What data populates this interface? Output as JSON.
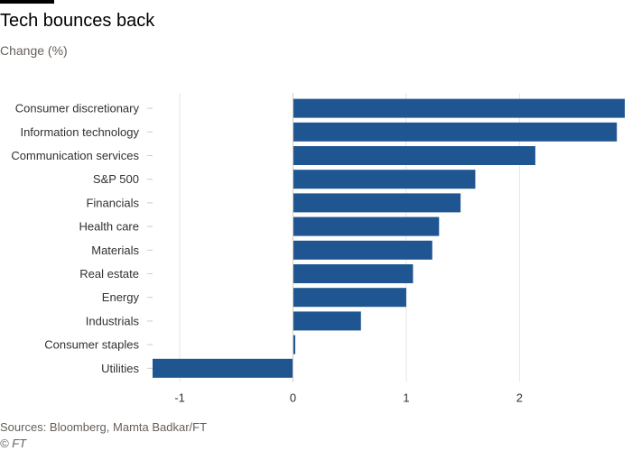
{
  "header": {
    "title": "Tech bounces back",
    "subtitle": "Change (%)"
  },
  "footer": {
    "source": "Sources: Bloomberg, Mamta Badkar/FT",
    "credit": "© FT"
  },
  "colors": {
    "bar": "#1f5591",
    "grid": "#e6e6e6",
    "zero_line": "#cccccc",
    "text": "#33302e",
    "muted_text": "#66605c"
  },
  "chart_data": {
    "type": "bar",
    "orientation": "horizontal",
    "title": "Tech bounces back",
    "subtitle": "Change (%)",
    "xlabel": "",
    "ylabel": "",
    "xlim": [
      -1.24,
      2.93
    ],
    "x_ticks": [
      -1,
      0,
      1,
      2
    ],
    "x_tick_labels": [
      "-1",
      "0",
      "1",
      "2"
    ],
    "grid": true,
    "categories": [
      "Consumer discretionary",
      "Information technology",
      "Communication services",
      "S&P 500",
      "Financials",
      "Health care",
      "Materials",
      "Real estate",
      "Energy",
      "Industrials",
      "Consumer staples",
      "Utilities"
    ],
    "values": [
      2.93,
      2.86,
      2.14,
      1.61,
      1.48,
      1.29,
      1.23,
      1.06,
      1.0,
      0.6,
      0.02,
      -1.24
    ]
  }
}
